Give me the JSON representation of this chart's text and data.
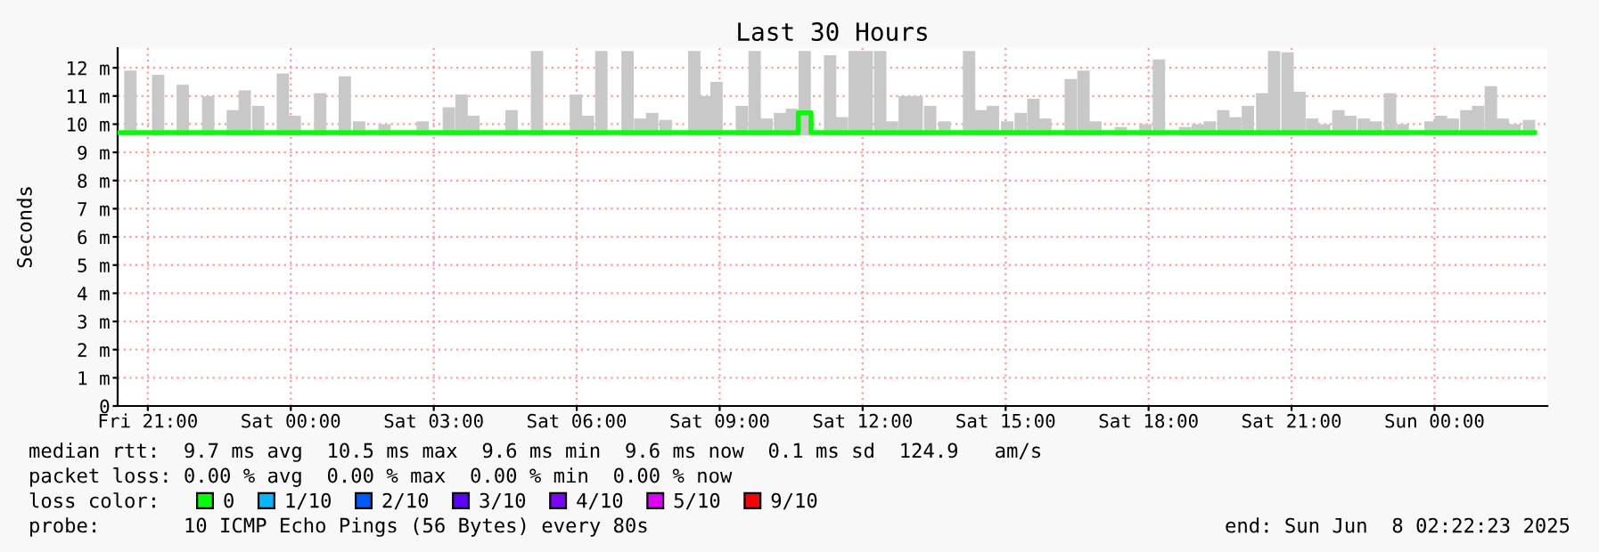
{
  "chart_data": {
    "type": "bar",
    "title": "Last 30 Hours",
    "ylabel": "Seconds",
    "xlim": [
      "2025-06-06T20:22",
      "2025-06-08T02:22"
    ],
    "ylim": [
      0,
      12.7
    ],
    "xticks": [
      {
        "value": "2025-06-06T21:00",
        "label": "Fri 21:00"
      },
      {
        "value": "2025-06-07T00:00",
        "label": "Sat 00:00"
      },
      {
        "value": "2025-06-07T03:00",
        "label": "Sat 03:00"
      },
      {
        "value": "2025-06-07T06:00",
        "label": "Sat 06:00"
      },
      {
        "value": "2025-06-07T09:00",
        "label": "Sat 09:00"
      },
      {
        "value": "2025-06-07T12:00",
        "label": "Sat 12:00"
      },
      {
        "value": "2025-06-07T15:00",
        "label": "Sat 15:00"
      },
      {
        "value": "2025-06-07T18:00",
        "label": "Sat 18:00"
      },
      {
        "value": "2025-06-07T21:00",
        "label": "Sat 21:00"
      },
      {
        "value": "2025-06-08T00:00",
        "label": "Sun 00:00"
      }
    ],
    "yticks": [
      0,
      {
        "value": 1,
        "label": "1 m"
      },
      {
        "value": 2,
        "label": "2 m"
      },
      {
        "value": 3,
        "label": "3 m"
      },
      {
        "value": 4,
        "label": "4 m"
      },
      {
        "value": 5,
        "label": "5 m"
      },
      {
        "value": 6,
        "label": "6 m"
      },
      {
        "value": 7,
        "label": "7 m"
      },
      {
        "value": 8,
        "label": "8 m"
      },
      {
        "value": 9,
        "label": "9 m"
      },
      {
        "value": 10,
        "label": "10 m"
      },
      {
        "value": 11,
        "label": "11 m"
      },
      {
        "value": 12,
        "label": "12 m"
      }
    ],
    "grid": true,
    "legend": "bottom",
    "legend_title": "loss color:",
    "series": [
      {
        "color": "#c8c8c8",
        "x": [
          "2025-06-06T20:38",
          "2025-06-06T21:13",
          "2025-06-06T21:44",
          "2025-06-06T22:16",
          "2025-06-06T22:47",
          "2025-06-06T23:02",
          "2025-06-06T23:19",
          "2025-06-06T23:50",
          "2025-06-07T00:05",
          "2025-06-07T00:37",
          "2025-06-07T01:08",
          "2025-06-07T01:26",
          "2025-06-07T01:58",
          "2025-06-07T02:46",
          "2025-06-07T03:19",
          "2025-06-07T03:35",
          "2025-06-07T03:50",
          "2025-06-07T04:38",
          "2025-06-07T05:10",
          "2025-06-07T05:59",
          "2025-06-07T06:14",
          "2025-06-07T06:31",
          "2025-06-07T07:04",
          "2025-06-07T07:20",
          "2025-06-07T07:35",
          "2025-06-07T07:52",
          "2025-06-07T08:28",
          "2025-06-07T08:41",
          "2025-06-07T08:56",
          "2025-06-07T09:28",
          "2025-06-07T09:44",
          "2025-06-07T09:59",
          "2025-06-07T10:16",
          "2025-06-07T10:31",
          "2025-06-07T10:47",
          "2025-06-07T11:19",
          "2025-06-07T11:34",
          "2025-06-07T11:50",
          "2025-06-07T12:05",
          "2025-06-07T12:22",
          "2025-06-07T12:37",
          "2025-06-07T12:53",
          "2025-06-07T13:08",
          "2025-06-07T13:25",
          "2025-06-07T13:43",
          "2025-06-07T14:14",
          "2025-06-07T14:29",
          "2025-06-07T14:44",
          "2025-06-07T15:02",
          "2025-06-07T15:19",
          "2025-06-07T15:35",
          "2025-06-07T15:50",
          "2025-06-07T16:22",
          "2025-06-07T16:38",
          "2025-06-07T16:53",
          "2025-06-07T17:25",
          "2025-06-07T17:56",
          "2025-06-07T18:13",
          "2025-06-07T18:46",
          "2025-06-07T19:02",
          "2025-06-07T19:17",
          "2025-06-07T19:34",
          "2025-06-07T19:49",
          "2025-06-07T20:05",
          "2025-06-07T20:23",
          "2025-06-07T20:38",
          "2025-06-07T20:55",
          "2025-06-07T21:10",
          "2025-06-07T21:26",
          "2025-06-07T21:41",
          "2025-06-07T21:59",
          "2025-06-07T22:14",
          "2025-06-07T22:31",
          "2025-06-07T22:46",
          "2025-06-07T23:04",
          "2025-06-07T23:20",
          "2025-06-07T23:55",
          "2025-06-08T00:08",
          "2025-06-08T00:23",
          "2025-06-08T00:40",
          "2025-06-08T00:55",
          "2025-06-08T01:11",
          "2025-06-08T01:26",
          "2025-06-08T01:41",
          "2025-06-08T01:59"
        ],
        "values": [
          2.3,
          2.15,
          1.8,
          1.4,
          0.9,
          1.6,
          1.05,
          2.2,
          0.7,
          1.5,
          2.1,
          0.5,
          0.4,
          0.5,
          1.0,
          1.45,
          0.7,
          0.9,
          3.0,
          1.45,
          0.7,
          3.0,
          3.0,
          0.6,
          0.8,
          0.55,
          3.0,
          1.4,
          1.9,
          1.05,
          3.0,
          0.6,
          0.8,
          0.95,
          3.0,
          2.85,
          0.65,
          3.0,
          3.0,
          3.0,
          0.5,
          1.4,
          1.4,
          1.05,
          0.5,
          3.0,
          0.9,
          1.05,
          0.5,
          0.8,
          1.3,
          0.6,
          2.0,
          2.3,
          0.5,
          0.3,
          0.4,
          2.7,
          0.3,
          0.4,
          0.5,
          0.9,
          0.65,
          1.05,
          1.5,
          3.0,
          2.95,
          1.55,
          0.6,
          0.4,
          0.9,
          0.7,
          0.6,
          0.5,
          1.5,
          0.4,
          0.5,
          0.7,
          0.6,
          0.9,
          1.05,
          1.75,
          0.6,
          0.4,
          0.55
        ],
        "base": [
          9.6,
          9.6,
          9.6,
          9.6,
          9.6,
          9.6,
          9.6,
          9.6,
          9.6,
          9.6,
          9.6,
          9.6,
          9.6,
          9.6,
          9.6,
          9.6,
          9.6,
          9.6,
          9.6,
          9.6,
          9.6,
          9.6,
          9.6,
          9.6,
          9.6,
          9.6,
          9.6,
          9.6,
          9.6,
          9.6,
          9.6,
          9.6,
          9.6,
          9.6,
          9.6,
          9.6,
          9.6,
          9.6,
          9.6,
          9.6,
          9.6,
          9.6,
          9.6,
          9.6,
          9.6,
          9.6,
          9.6,
          9.6,
          9.6,
          9.6,
          9.6,
          9.6,
          9.6,
          9.6,
          9.6,
          9.6,
          9.6,
          9.6,
          9.6,
          9.6,
          9.6,
          9.6,
          9.6,
          9.6,
          9.6,
          9.6,
          9.6,
          9.6,
          9.6,
          9.6,
          9.6,
          9.6,
          9.6,
          9.6,
          9.6,
          9.6,
          9.6,
          9.6,
          9.6,
          9.6,
          9.6,
          9.6,
          9.6,
          9.6,
          9.6
        ]
      },
      {
        "type": "line",
        "name": "0",
        "color": "#00ff00",
        "x": [
          "2025-06-06T20:22",
          "2025-06-07T10:39",
          "2025-06-07T10:39",
          "2025-06-07T10:55",
          "2025-06-07T10:55",
          "2025-06-08T02:06"
        ],
        "values": [
          9.7,
          9.7,
          10.4,
          10.4,
          9.7,
          9.7
        ]
      },
      {
        "type": "line",
        "name": "1/10",
        "color": "#00b8ff"
      },
      {
        "type": "line",
        "name": "2/10",
        "color": "#0059ff"
      },
      {
        "type": "line",
        "name": "3/10",
        "color": "#5e00ff"
      },
      {
        "type": "line",
        "name": "4/10",
        "color": "#7e00ff"
      },
      {
        "type": "line",
        "name": "5/10",
        "color": "#dd00ff"
      },
      {
        "type": "line",
        "name": "9/10",
        "color": "#ff0000"
      }
    ],
    "annotations": [
      "median rtt:  9.7 ms avg  10.5 ms max  9.6 ms min  9.6 ms now  0.1 ms sd  124.9   am/s",
      "packet loss: 0.00 % avg  0.00 % max  0.00 % min  0.00 % now",
      "probe:       10 ICMP Echo Pings (56 Bytes) every 80s",
      "end: Sun Jun  8 02:22:23 2025"
    ]
  }
}
